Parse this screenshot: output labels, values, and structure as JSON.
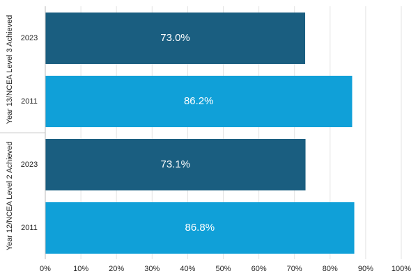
{
  "chart_data": {
    "type": "bar",
    "orientation": "horizontal",
    "groups": [
      {
        "name": "Year 13/NCEA Level 3 Achieved",
        "categories": [
          "2023",
          "2011"
        ],
        "values": [
          73.0,
          86.2
        ],
        "value_labels": [
          "73.0%",
          "86.2%"
        ],
        "colors": [
          "#1a5e80",
          "#10a0d8"
        ]
      },
      {
        "name": "Year 12/NCEA Level 2 Achieved",
        "categories": [
          "2023",
          "2011"
        ],
        "values": [
          73.1,
          86.8
        ],
        "value_labels": [
          "73.1%",
          "86.8%"
        ],
        "colors": [
          "#1a5e80",
          "#10a0d8"
        ]
      }
    ],
    "xlim": [
      0,
      100
    ],
    "xticks": [
      {
        "value": 0,
        "label": "0%"
      },
      {
        "value": 10,
        "label": "10%"
      },
      {
        "value": 20,
        "label": "20%"
      },
      {
        "value": 30,
        "label": "30%"
      },
      {
        "value": 40,
        "label": "40%"
      },
      {
        "value": 50,
        "label": "50%"
      },
      {
        "value": 60,
        "label": "60%"
      },
      {
        "value": 70,
        "label": "70%"
      },
      {
        "value": 80,
        "label": "80%"
      },
      {
        "value": 90,
        "label": "90%"
      },
      {
        "value": 100,
        "label": "100%"
      }
    ],
    "grid": true
  }
}
